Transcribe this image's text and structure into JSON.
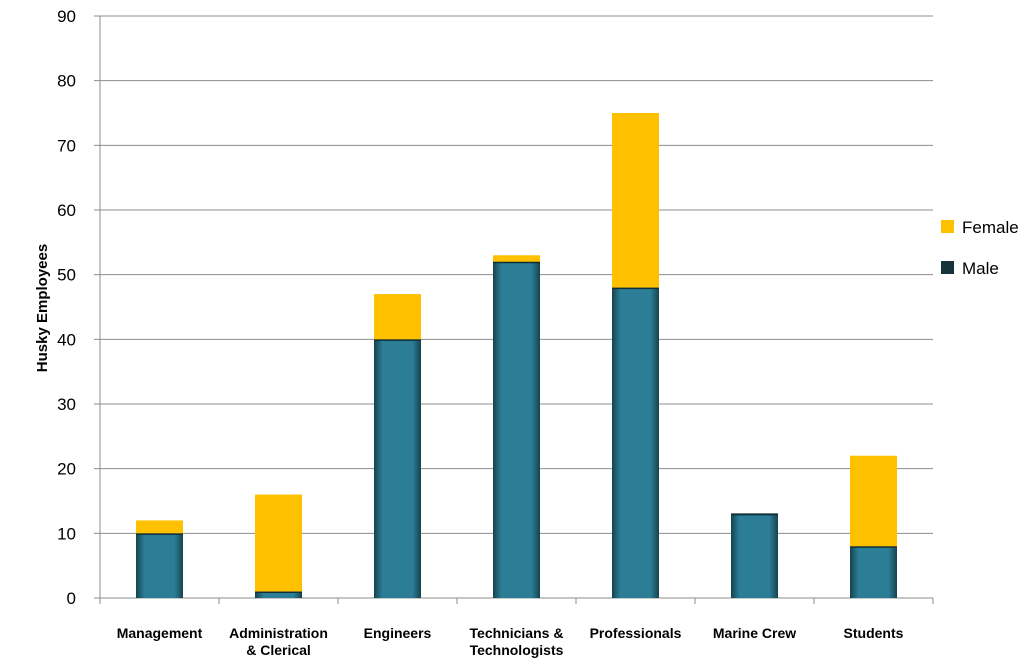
{
  "chart_data": {
    "type": "bar",
    "stacked": true,
    "title": "",
    "xlabel": "",
    "ylabel": "Husky Employees",
    "ylim": [
      0,
      90
    ],
    "yticks": [
      0,
      10,
      20,
      30,
      40,
      50,
      60,
      70,
      80,
      90
    ],
    "grid": true,
    "legend_position": "right",
    "categories": [
      [
        "Management"
      ],
      [
        "Administration",
        "& Clerical"
      ],
      [
        "Engineers"
      ],
      [
        "Technicians &",
        "Technologists"
      ],
      [
        "Professionals"
      ],
      [
        "Marine Crew"
      ],
      [
        "Students"
      ]
    ],
    "series": [
      {
        "name": "Male",
        "color": "#2b7e96",
        "values": [
          10,
          1,
          40,
          52,
          48,
          13,
          8
        ]
      },
      {
        "name": "Female",
        "color": "#ffc000",
        "values": [
          2,
          15,
          7,
          1,
          27,
          0,
          14
        ]
      }
    ],
    "legend": [
      {
        "name": "Female",
        "color": "#ffc000"
      },
      {
        "name": "Male",
        "color": "#17343d"
      }
    ]
  }
}
